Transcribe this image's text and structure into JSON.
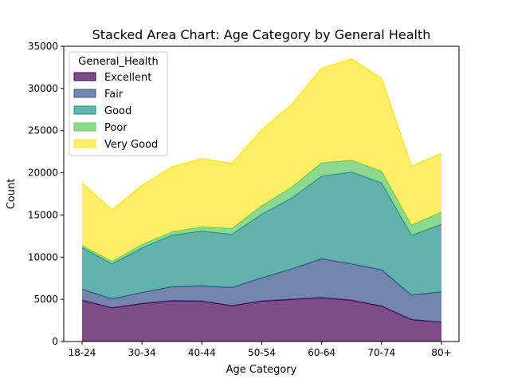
{
  "chart_data": {
    "type": "area",
    "stacked": true,
    "title": "Stacked Area Chart: Age Category by General Health",
    "xlabel": "Age Category",
    "ylabel": "Count",
    "ylim": [
      0,
      35000
    ],
    "yticks": [
      0,
      5000,
      10000,
      15000,
      20000,
      25000,
      30000,
      35000
    ],
    "categories": [
      "18-24",
      "25-29",
      "30-34",
      "35-39",
      "40-44",
      "45-49",
      "50-54",
      "55-59",
      "60-64",
      "65-69",
      "70-74",
      "75-79",
      "80+"
    ],
    "xtick_labels": [
      "18-24",
      "30-34",
      "40-44",
      "50-54",
      "60-64",
      "70-74",
      "80+"
    ],
    "legend_title": "General_Health",
    "legend_position": "upper-left",
    "grid": false,
    "series": [
      {
        "name": "Excellent",
        "color": "#440154",
        "values": [
          4900,
          4000,
          4500,
          4850,
          4800,
          4250,
          4800,
          5000,
          5200,
          4900,
          4200,
          2600,
          2300
        ]
      },
      {
        "name": "Fair",
        "color": "#3b528b",
        "values": [
          1300,
          1050,
          1300,
          1650,
          1800,
          2150,
          2750,
          3600,
          4600,
          4300,
          4300,
          2900,
          3600
        ]
      },
      {
        "name": "Good",
        "color": "#21918c",
        "values": [
          4950,
          4150,
          5300,
          6100,
          6500,
          6300,
          7550,
          8400,
          9800,
          10900,
          10300,
          7100,
          8000
        ]
      },
      {
        "name": "Poor",
        "color": "#5ec962",
        "values": [
          250,
          300,
          400,
          400,
          500,
          700,
          1000,
          1300,
          1600,
          1400,
          1400,
          1200,
          1450
        ]
      },
      {
        "name": "Very Good",
        "color": "#fde725",
        "values": [
          7400,
          6100,
          7000,
          7700,
          8100,
          7700,
          9000,
          9800,
          11200,
          12000,
          11000,
          7000,
          6950
        ]
      }
    ]
  }
}
